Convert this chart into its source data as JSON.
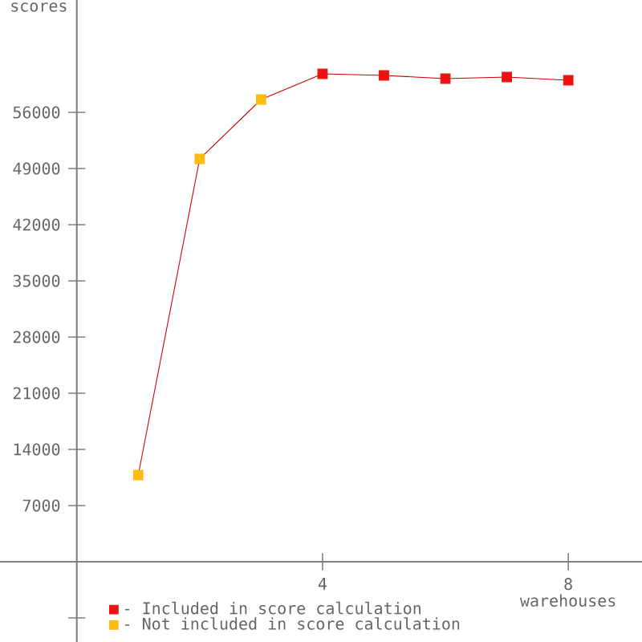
{
  "chart_data": {
    "type": "scatter",
    "xlabel": "warehouses",
    "ylabel": "scores",
    "xlim": [
      -1.25,
      9.2
    ],
    "ylim": [
      -10000,
      70000
    ],
    "xticks": [
      4,
      8
    ],
    "yticks": [
      {
        "value": -7000,
        "label": null
      },
      7000,
      14000,
      21000,
      28000,
      35000,
      42000,
      49000,
      56000
    ],
    "marker": "square",
    "legend": "bottom left",
    "series": [
      {
        "type": "line",
        "color": "#cc0000",
        "x": [
          1,
          2,
          3,
          4,
          5,
          6,
          7,
          8
        ],
        "values": [
          10800,
          50200,
          57600,
          60800,
          60600,
          60200,
          60400,
          60000
        ],
        "marker": "none",
        "line_style": "solid"
      },
      {
        "name": "- Included in score calculation",
        "color": "#ee1111",
        "x": [
          4,
          5,
          6,
          7,
          8
        ],
        "values": [
          60800,
          60600,
          60200,
          60400,
          60000
        ]
      },
      {
        "name": "- Not included in score calculation",
        "color": "#ffbb11",
        "x": [
          1,
          2,
          3
        ],
        "values": [
          10800,
          50200,
          57600
        ]
      }
    ]
  }
}
